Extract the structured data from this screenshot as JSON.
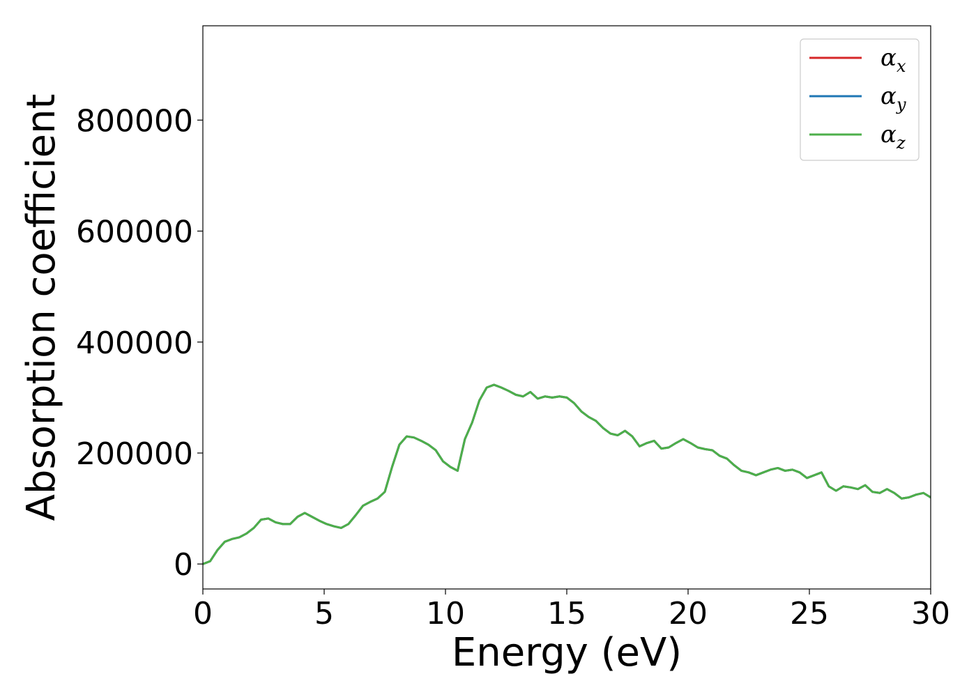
{
  "chart_data": {
    "type": "line",
    "xlabel": "Energy (eV)",
    "ylabel": "Absorption coefficient",
    "xlim": [
      0,
      30
    ],
    "ylim": [
      -45000,
      970000
    ],
    "xticks": [
      0,
      5,
      10,
      15,
      20,
      25,
      30
    ],
    "xtick_labels": [
      "0",
      "5",
      "10",
      "15",
      "20",
      "25",
      "30"
    ],
    "yticks": [
      0,
      200000,
      400000,
      600000,
      800000
    ],
    "ytick_labels": [
      "0",
      "200000",
      "400000",
      "600000",
      "800000"
    ],
    "grid": false,
    "legend_position": "top-right",
    "x": [
      0,
      0.3,
      0.6,
      0.9,
      1.2,
      1.5,
      1.8,
      2.1,
      2.4,
      2.7,
      3.0,
      3.3,
      3.6,
      3.9,
      4.2,
      4.5,
      4.8,
      5.1,
      5.4,
      5.7,
      6.0,
      6.3,
      6.6,
      6.9,
      7.2,
      7.5,
      7.8,
      8.1,
      8.4,
      8.7,
      9.0,
      9.3,
      9.6,
      9.9,
      10.2,
      10.5,
      10.8,
      11.1,
      11.4,
      11.7,
      12.0,
      12.3,
      12.6,
      12.9,
      13.2,
      13.5,
      13.8,
      14.1,
      14.4,
      14.7,
      15.0,
      15.3,
      15.6,
      15.9,
      16.2,
      16.5,
      16.8,
      17.1,
      17.4,
      17.7,
      18.0,
      18.3,
      18.6,
      18.9,
      19.2,
      19.5,
      19.8,
      20.1,
      20.4,
      20.7,
      21.0,
      21.3,
      21.6,
      21.9,
      22.2,
      22.5,
      22.8,
      23.1,
      23.4,
      23.7,
      24.0,
      24.3,
      24.6,
      24.9,
      25.2,
      25.5,
      25.8,
      26.1,
      26.4,
      26.7,
      27.0,
      27.3,
      27.6,
      27.9,
      28.2,
      28.5,
      28.8,
      29.1,
      29.4,
      29.7,
      30.0
    ],
    "series": [
      {
        "name": "αx",
        "label_base": "α",
        "label_sub": "x",
        "color": "#d62728",
        "values": [
          0,
          5000,
          25000,
          40000,
          45000,
          48000,
          55000,
          65000,
          80000,
          82000,
          75000,
          72000,
          72000,
          85000,
          92000,
          85000,
          78000,
          72000,
          68000,
          65000,
          72000,
          88000,
          105000,
          112000,
          118000,
          130000,
          175000,
          215000,
          230000,
          228000,
          222000,
          215000,
          205000,
          185000,
          175000,
          168000,
          225000,
          255000,
          295000,
          318000,
          323000,
          318000,
          312000,
          305000,
          302000,
          310000,
          298000,
          302000,
          300000,
          302000,
          300000,
          290000,
          275000,
          265000,
          258000,
          245000,
          235000,
          232000,
          240000,
          230000,
          212000,
          218000,
          222000,
          208000,
          210000,
          218000,
          225000,
          218000,
          210000,
          207000,
          205000,
          195000,
          190000,
          178000,
          168000,
          165000,
          160000,
          165000,
          170000,
          173000,
          168000,
          170000,
          165000,
          155000,
          160000,
          165000,
          140000,
          132000,
          140000,
          138000,
          135000,
          142000,
          130000,
          128000,
          135000,
          128000,
          118000,
          120000,
          125000,
          128000,
          120000
        ]
      },
      {
        "name": "αy",
        "label_base": "α",
        "label_sub": "y",
        "color": "#1f77b4",
        "values": [
          0,
          5000,
          25000,
          40000,
          45000,
          48000,
          55000,
          65000,
          80000,
          82000,
          75000,
          72000,
          72000,
          85000,
          92000,
          85000,
          78000,
          72000,
          68000,
          65000,
          72000,
          88000,
          105000,
          112000,
          118000,
          130000,
          175000,
          215000,
          230000,
          228000,
          222000,
          215000,
          205000,
          185000,
          175000,
          168000,
          225000,
          255000,
          295000,
          318000,
          323000,
          318000,
          312000,
          305000,
          302000,
          310000,
          298000,
          302000,
          300000,
          302000,
          300000,
          290000,
          275000,
          265000,
          258000,
          245000,
          235000,
          232000,
          240000,
          230000,
          212000,
          218000,
          222000,
          208000,
          210000,
          218000,
          225000,
          218000,
          210000,
          207000,
          205000,
          195000,
          190000,
          178000,
          168000,
          165000,
          160000,
          165000,
          170000,
          173000,
          168000,
          170000,
          165000,
          155000,
          160000,
          165000,
          140000,
          132000,
          140000,
          138000,
          135000,
          142000,
          130000,
          128000,
          135000,
          128000,
          118000,
          120000,
          125000,
          128000,
          120000
        ]
      },
      {
        "name": "αz",
        "label_base": "α",
        "label_sub": "z",
        "color": "#4daf4a",
        "values": [
          0,
          5000,
          25000,
          40000,
          45000,
          48000,
          55000,
          65000,
          80000,
          82000,
          75000,
          72000,
          72000,
          85000,
          92000,
          85000,
          78000,
          72000,
          68000,
          65000,
          72000,
          88000,
          105000,
          112000,
          118000,
          130000,
          175000,
          215000,
          230000,
          228000,
          222000,
          215000,
          205000,
          185000,
          175000,
          168000,
          225000,
          255000,
          295000,
          318000,
          323000,
          318000,
          312000,
          305000,
          302000,
          310000,
          298000,
          302000,
          300000,
          302000,
          300000,
          290000,
          275000,
          265000,
          258000,
          245000,
          235000,
          232000,
          240000,
          230000,
          212000,
          218000,
          222000,
          208000,
          210000,
          218000,
          225000,
          218000,
          210000,
          207000,
          205000,
          195000,
          190000,
          178000,
          168000,
          165000,
          160000,
          165000,
          170000,
          173000,
          168000,
          170000,
          165000,
          155000,
          160000,
          165000,
          140000,
          132000,
          140000,
          138000,
          135000,
          142000,
          130000,
          128000,
          135000,
          128000,
          118000,
          120000,
          125000,
          128000,
          120000
        ]
      }
    ]
  }
}
